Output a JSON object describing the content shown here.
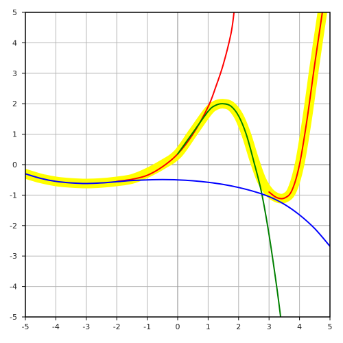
{
  "chart_data": {
    "type": "line",
    "xlim": [
      -5,
      5
    ],
    "ylim": [
      -5,
      5
    ],
    "grid": true,
    "x_ticks": [
      "-5",
      "-4",
      "-3",
      "-2",
      "-1",
      "0",
      "1",
      "2",
      "3",
      "4",
      "5"
    ],
    "y_ticks": [
      "-5",
      "-4",
      "-3",
      "-2",
      "-1",
      "0",
      "1",
      "2",
      "3",
      "4",
      "5"
    ],
    "series": [
      {
        "color": "#ffff00",
        "style": "thick highlight",
        "x": [
          -5.0,
          -4.5,
          -4.0,
          -3.5,
          -3.0,
          -2.5,
          -2.0,
          -1.5,
          -1.0,
          -0.5,
          0.0,
          0.5,
          1.0,
          1.25,
          1.5,
          1.75,
          2.0,
          2.25,
          2.5,
          2.75,
          3.0,
          3.25,
          3.5,
          3.75,
          4.0,
          4.25,
          4.5,
          4.75
        ],
        "y": [
          -0.3,
          -0.45,
          -0.55,
          -0.6,
          -0.62,
          -0.6,
          -0.55,
          -0.47,
          -0.27,
          0.0,
          0.35,
          1.05,
          1.75,
          1.95,
          2.0,
          1.92,
          1.6,
          1.0,
          0.2,
          -0.5,
          -0.9,
          -1.08,
          -1.1,
          -0.85,
          0.0,
          1.5,
          3.3,
          5.0
        ]
      },
      {
        "color": "#ff0000",
        "x": [
          -2.0,
          -1.5,
          -1.0,
          -0.5,
          0.0,
          0.5,
          1.0,
          1.25,
          1.5,
          1.75,
          1.85
        ],
        "y": [
          -0.55,
          -0.48,
          -0.35,
          -0.07,
          0.35,
          1.0,
          1.9,
          2.55,
          3.3,
          4.3,
          5.0
        ]
      },
      {
        "color": "#ff0000",
        "x": [
          3.0,
          3.25,
          3.5,
          3.75,
          4.0,
          4.25,
          4.5,
          4.75
        ],
        "y": [
          -0.9,
          -1.08,
          -1.1,
          -0.85,
          0.0,
          1.5,
          3.3,
          5.0
        ]
      },
      {
        "color": "#008000",
        "x": [
          0.0,
          0.5,
          1.0,
          1.25,
          1.5,
          1.75,
          2.0,
          2.25,
          2.5,
          2.75,
          3.0,
          3.25,
          3.38
        ],
        "y": [
          0.35,
          1.05,
          1.75,
          1.95,
          2.0,
          1.92,
          1.6,
          1.0,
          0.1,
          -0.9,
          -2.3,
          -4.0,
          -5.0
        ]
      },
      {
        "color": "#0000ff",
        "x": [
          -5.0,
          -4.5,
          -4.0,
          -3.5,
          -3.0,
          -2.5,
          -2.0,
          -1.5,
          -1.0,
          -0.5,
          0.0,
          0.5,
          1.0,
          1.5,
          2.0,
          2.5,
          3.0,
          3.5,
          4.0,
          4.5,
          5.0
        ],
        "y": [
          -0.3,
          -0.45,
          -0.55,
          -0.6,
          -0.62,
          -0.6,
          -0.56,
          -0.52,
          -0.5,
          -0.49,
          -0.5,
          -0.53,
          -0.58,
          -0.65,
          -0.75,
          -0.88,
          -1.05,
          -1.3,
          -1.65,
          -2.1,
          -2.68
        ]
      }
    ]
  }
}
